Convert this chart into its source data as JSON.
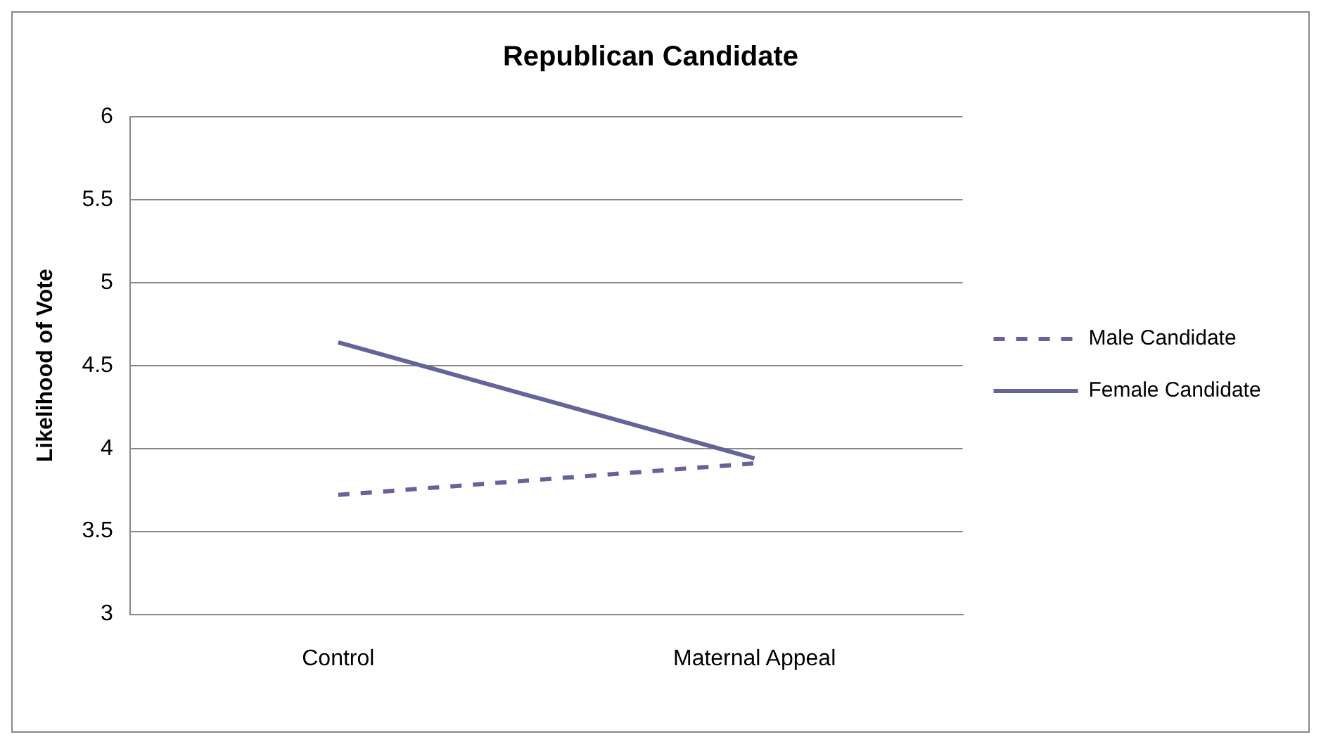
{
  "chart_data": {
    "type": "line",
    "title": "Republican Candidate",
    "ylabel": "Likelihood of Vote",
    "categories": [
      "Control",
      "Maternal Appeal"
    ],
    "series": [
      {
        "name": "Male Candidate",
        "color": "#64649a",
        "values": [
          3.72,
          3.91
        ],
        "line_style": "dashed"
      },
      {
        "name": "Female Candidate",
        "color": "#64649a",
        "values": [
          4.64,
          3.94
        ],
        "line_style": "solid"
      }
    ],
    "ylim": [
      3,
      6
    ],
    "yticks": [
      3,
      3.5,
      4,
      4.5,
      5,
      5.5,
      6
    ],
    "grid": "y",
    "legend": "right",
    "marker": "none"
  }
}
